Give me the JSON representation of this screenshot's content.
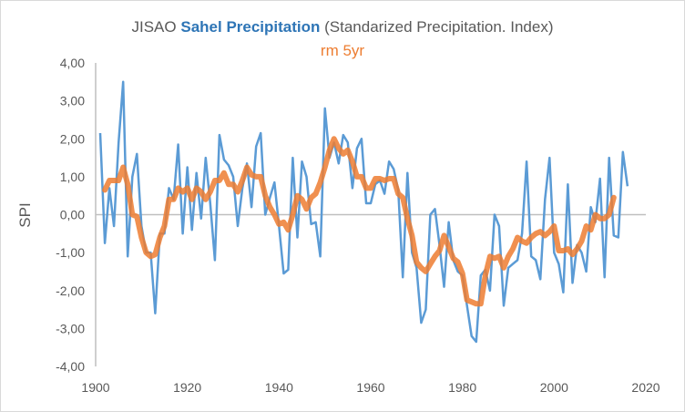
{
  "chart_data": {
    "type": "line",
    "title_prefix": "JISAO ",
    "title_highlight": "Sahel Precipitation",
    "title_suffix": " (Standarized Precipitation. Index)",
    "subtitle": "rm 5yr",
    "xlabel": "",
    "ylabel": "SPI",
    "xlim": [
      1900,
      2020
    ],
    "ylim": [
      -4,
      4
    ],
    "x_ticks": [
      1900,
      1920,
      1940,
      1960,
      1980,
      2000,
      2020
    ],
    "y_ticks": [
      4,
      3,
      2,
      1,
      0,
      -1,
      -2,
      -3,
      -4
    ],
    "y_tick_labels": [
      "4,00",
      "3,00",
      "2,00",
      "1,00",
      "0,00",
      "-1,00",
      "-2,00",
      "-3,00",
      "-4,00"
    ],
    "x_tick_labels": [
      "1900",
      "1920",
      "1940",
      "1960",
      "1980",
      "2000",
      "2020"
    ],
    "grid": false,
    "series": [
      {
        "name": "SPI",
        "color": "#5b9bd5",
        "x_start": 1901,
        "values": [
          2.15,
          -0.75,
          0.7,
          -0.3,
          1.9,
          3.5,
          -1.1,
          1.0,
          1.6,
          -0.3,
          -1.0,
          -1.0,
          -2.6,
          -0.5,
          -0.5,
          0.7,
          0.4,
          1.85,
          -0.5,
          1.25,
          -0.4,
          1.1,
          -0.1,
          1.5,
          0.3,
          -1.2,
          2.1,
          1.45,
          1.3,
          1.0,
          -0.3,
          0.7,
          1.35,
          0.2,
          1.8,
          2.15,
          0.0,
          0.45,
          0.85,
          -0.3,
          -1.55,
          -1.45,
          1.5,
          -0.6,
          1.4,
          1.0,
          -0.25,
          -0.2,
          -1.1,
          2.8,
          1.5,
          1.9,
          1.35,
          2.1,
          1.9,
          0.7,
          1.75,
          2.0,
          0.3,
          0.3,
          0.8,
          0.9,
          0.55,
          1.4,
          1.2,
          0.65,
          -1.65,
          1.1,
          -1.0,
          -1.4,
          -2.85,
          -2.5,
          0.0,
          0.15,
          -0.8,
          -1.9,
          -0.2,
          -1.2,
          -1.5,
          -1.6,
          -2.4,
          -3.2,
          -3.35,
          -1.6,
          -1.45,
          -2.0,
          0.0,
          -0.3,
          -2.4,
          -1.4,
          -1.3,
          -1.2,
          -0.5,
          1.4,
          -1.1,
          -1.2,
          -1.7,
          0.4,
          1.5,
          -1.0,
          -1.3,
          -2.05,
          0.8,
          -1.8,
          -0.8,
          -1.0,
          -1.5,
          0.2,
          -0.2,
          0.95,
          -1.65,
          1.5,
          -0.55,
          -0.6,
          1.65,
          0.75
        ]
      },
      {
        "name": "rm 5yr",
        "color": "#ed7d31",
        "x_start": 1902,
        "values": [
          0.65,
          0.9,
          0.9,
          0.9,
          1.25,
          0.8,
          0.0,
          -0.05,
          -0.6,
          -1.0,
          -1.1,
          -1.05,
          -0.6,
          -0.3,
          0.4,
          0.4,
          0.7,
          0.6,
          0.7,
          0.4,
          0.7,
          0.6,
          0.4,
          0.6,
          0.9,
          0.9,
          1.1,
          0.8,
          0.8,
          0.6,
          0.9,
          1.25,
          1.05,
          1.0,
          1.0,
          0.5,
          0.2,
          0.0,
          -0.25,
          -0.2,
          -0.4,
          0.0,
          0.5,
          0.4,
          0.15,
          0.45,
          0.55,
          0.85,
          1.25,
          1.7,
          2.0,
          1.75,
          1.6,
          1.7,
          1.4,
          1.0,
          1.0,
          0.7,
          0.7,
          0.95,
          0.95,
          0.9,
          0.95,
          0.95,
          0.55,
          0.45,
          -0.1,
          -0.55,
          -1.25,
          -1.4,
          -1.5,
          -1.3,
          -1.1,
          -0.95,
          -0.55,
          -0.85,
          -1.15,
          -1.25,
          -1.55,
          -2.25,
          -2.3,
          -2.35,
          -2.35,
          -1.6,
          -1.1,
          -1.15,
          -1.1,
          -1.4,
          -1.1,
          -0.9,
          -0.6,
          -0.7,
          -0.75,
          -0.6,
          -0.5,
          -0.45,
          -0.55,
          -0.45,
          -0.3,
          -0.95,
          -0.95,
          -0.9,
          -1.05,
          -0.9,
          -0.7,
          -0.3,
          -0.4,
          0.0,
          -0.1,
          -0.1,
          0.0,
          0.45
        ]
      }
    ]
  }
}
